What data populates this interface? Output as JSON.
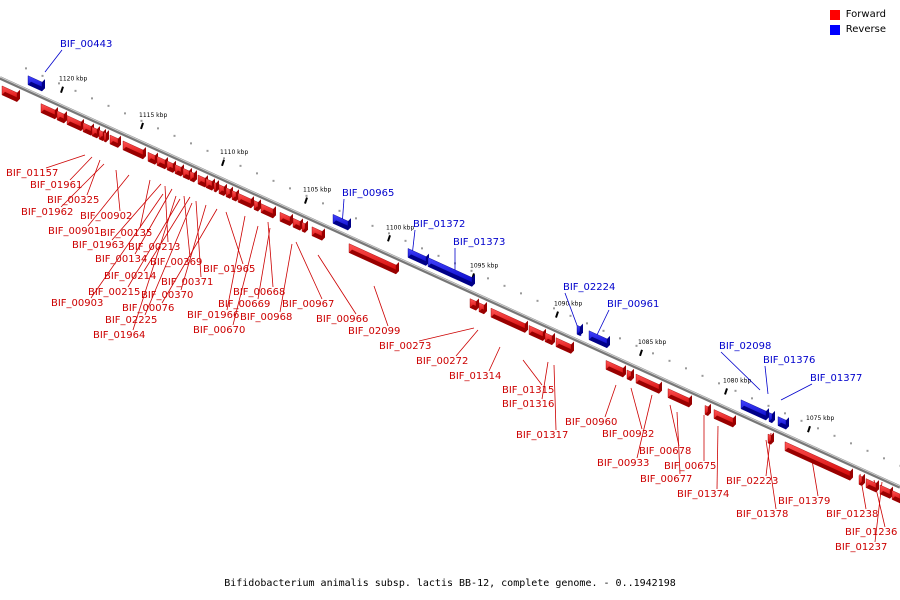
{
  "legend": {
    "forward_label": "Forward",
    "reverse_label": "Reverse",
    "forward_color": "#ff0000",
    "reverse_color": "#0000ff"
  },
  "caption": "Bifidobacterium animalis subsp. lactis BB-12, complete genome. - 0..1942198",
  "ticks": [
    "1120 kbp",
    "1115 kbp",
    "1110 kbp",
    "1105 kbp",
    "1100 kbp",
    "1095 kbp",
    "1090 kbp",
    "1085 kbp",
    "1080 kbp",
    "1075 kbp"
  ],
  "reverse_labels": [
    "BIF_00443",
    "BIF_00965",
    "BIF_01372",
    "BIF_01373",
    "BIF_02224",
    "BIF_00961",
    "BIF_02098",
    "BIF_01376",
    "BIF_01377"
  ],
  "forward_labels": [
    "BIF_01157",
    "BIF_01961",
    "BIF_00325",
    "BIF_01962",
    "BIF_00902",
    "BIF_00901",
    "BIF_00135",
    "BIF_01963",
    "BIF_00213",
    "BIF_00134",
    "BIF_00369",
    "BIF_00214",
    "BIF_01965",
    "BIF_00371",
    "BIF_00215",
    "BIF_00370",
    "BIF_00668",
    "BIF_00903",
    "BIF_00076",
    "BIF_00669",
    "BIF_00967",
    "BIF_01966",
    "BIF_00968",
    "BIF_02225",
    "BIF_00670",
    "BIF_00966",
    "BIF_01964",
    "BIF_02099",
    "BIF_00273",
    "BIF_00272",
    "BIF_01314",
    "BIF_01315",
    "BIF_01316",
    "BIF_01317",
    "BIF_00960",
    "BIF_00932",
    "BIF_00933",
    "BIF_00678",
    "BIF_00675",
    "BIF_00677",
    "BIF_01374",
    "BIF_02223",
    "BIF_01379",
    "BIF_01378",
    "BIF_01238",
    "BIF_01236",
    "BIF_01237"
  ]
}
